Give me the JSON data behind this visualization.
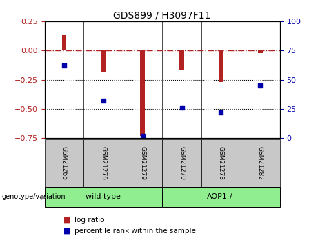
{
  "title": "GDS899 / H3097F11",
  "samples": [
    "GSM21266",
    "GSM21276",
    "GSM21279",
    "GSM21270",
    "GSM21273",
    "GSM21282"
  ],
  "log_ratios": [
    0.13,
    -0.18,
    -0.73,
    -0.17,
    -0.27,
    -0.02
  ],
  "percentile_ranks": [
    62,
    32,
    2,
    26,
    22,
    45
  ],
  "bar_color": "#b22222",
  "dot_color": "#0000aa",
  "ylim_left": [
    -0.75,
    0.25
  ],
  "ylim_right": [
    0,
    100
  ],
  "yticks_left": [
    0.25,
    0,
    -0.25,
    -0.5,
    -0.75
  ],
  "yticks_right": [
    100,
    75,
    50,
    25,
    0
  ],
  "genotype_label": "genotype/variation",
  "legend_items": [
    {
      "color": "#b22222",
      "label": "log ratio"
    },
    {
      "color": "#0000aa",
      "label": "percentile rank within the sample"
    }
  ],
  "hline_color": "#b22222",
  "dotted_lines": [
    -0.25,
    -0.5
  ],
  "background_color": "#ffffff",
  "plot_bg": "#ffffff",
  "bar_width": 0.12,
  "gray_color": "#c8c8c8",
  "green_color": "#90ee90"
}
